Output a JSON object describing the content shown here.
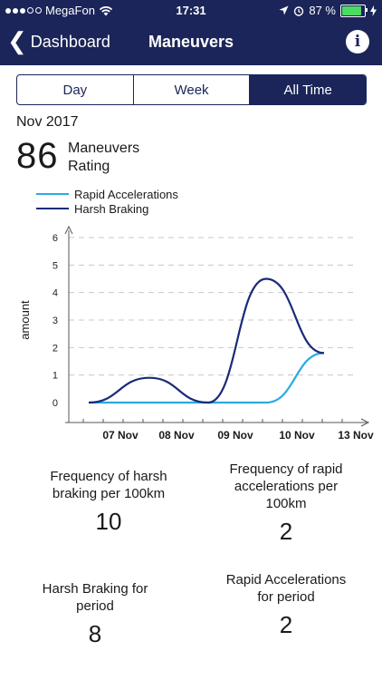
{
  "status_bar": {
    "carrier": "MegaFon",
    "time": "17:31",
    "battery_percent": "87 %",
    "signal_filled": 3,
    "signal_total": 5,
    "icons": [
      "wifi-icon",
      "location-arrow-icon",
      "alarm-icon",
      "battery-icon",
      "charging-bolt-icon"
    ]
  },
  "nav": {
    "back_label": "Dashboard",
    "title": "Maneuvers",
    "info_glyph": "i"
  },
  "segments": [
    {
      "label": "Day",
      "active": false
    },
    {
      "label": "Week",
      "active": false
    },
    {
      "label": "All Time",
      "active": true
    }
  ],
  "summary": {
    "period": "Nov 2017",
    "rating_value": "86",
    "rating_label": "Maneuvers Rating"
  },
  "colors": {
    "header_bg": "#1b2559",
    "rapid_accel": "#29abe2",
    "harsh_braking": "#1b2a78",
    "battery_fill": "#4cd964"
  },
  "chart_data": {
    "type": "line",
    "ylabel": "amount",
    "xlabel": "",
    "ylim": [
      0,
      6
    ],
    "yticks": [
      0,
      1,
      2,
      3,
      4,
      5,
      6
    ],
    "ytick_labels": [
      "0",
      "1",
      "2",
      "3",
      "4",
      "5",
      "6"
    ],
    "xtick_labels": [
      "07 Nov",
      "08 Nov",
      "09 Nov",
      "10 Nov",
      "13 Nov"
    ],
    "x": [
      "07 Nov",
      "08 Nov",
      "09 Nov",
      "10 Nov",
      "13 Nov"
    ],
    "grid": "horizontal dashed",
    "legend_position": "top-left",
    "series": [
      {
        "name": "Rapid Accelerations",
        "color": "#29abe2",
        "values": [
          0,
          0,
          0,
          0,
          1.8
        ]
      },
      {
        "name": "Harsh Braking",
        "color": "#1b2a78",
        "values": [
          0,
          0.9,
          0,
          4.5,
          1.8
        ]
      }
    ]
  },
  "stats": [
    {
      "title": "Frequency of harsh braking per 100km",
      "value": "10"
    },
    {
      "title": "Frequency of rapid accelerations per 100km",
      "value": "2"
    },
    {
      "title": "Harsh Braking for period",
      "value": "8"
    },
    {
      "title": "Rapid Accelerations for period",
      "value": "2"
    }
  ]
}
